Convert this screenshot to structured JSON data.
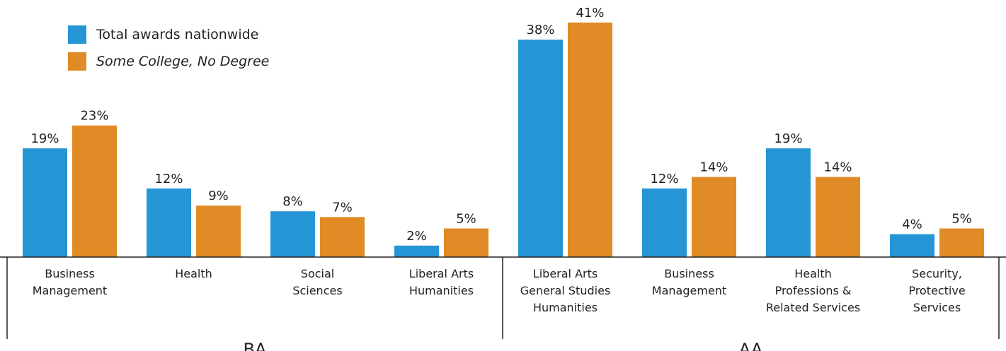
{
  "chart_data": {
    "type": "bar",
    "colors": {
      "nationwide": "#2695d6",
      "some_college": "#e08b25"
    },
    "ylim": [
      0,
      45
    ],
    "legend_position": "top-left",
    "series": [
      {
        "name": "Total awards nationwide",
        "italic": false
      },
      {
        "name": "Some College, No Degree",
        "italic": true
      }
    ],
    "groups": [
      {
        "label": "BA",
        "categories": [
          {
            "label_lines": [
              "Business",
              "Management"
            ],
            "values": [
              19,
              23
            ],
            "value_labels": [
              "19%",
              "23%"
            ]
          },
          {
            "label_lines": [
              "Health"
            ],
            "values": [
              12,
              9
            ],
            "value_labels": [
              "12%",
              "9%"
            ]
          },
          {
            "label_lines": [
              "Social",
              "Sciences"
            ],
            "values": [
              8,
              7
            ],
            "value_labels": [
              "8%",
              "7%"
            ]
          },
          {
            "label_lines": [
              "Liberal Arts",
              "Humanities"
            ],
            "values": [
              2,
              5
            ],
            "value_labels": [
              "2%",
              "5%"
            ]
          }
        ]
      },
      {
        "label": "AA",
        "categories": [
          {
            "label_lines": [
              "Liberal Arts",
              "General Studies",
              "Humanities"
            ],
            "values": [
              38,
              41
            ],
            "value_labels": [
              "38%",
              "41%"
            ]
          },
          {
            "label_lines": [
              "Business",
              "Management"
            ],
            "values": [
              12,
              14
            ],
            "value_labels": [
              "12%",
              "14%"
            ]
          },
          {
            "label_lines": [
              "Health",
              "Professions &",
              "Related Services"
            ],
            "values": [
              19,
              14
            ],
            "value_labels": [
              "19%",
              "14%"
            ]
          },
          {
            "label_lines": [
              "Security,",
              "Protective",
              "Services"
            ],
            "values": [
              4,
              5
            ],
            "value_labels": [
              "4%",
              "5%"
            ]
          }
        ]
      }
    ]
  }
}
